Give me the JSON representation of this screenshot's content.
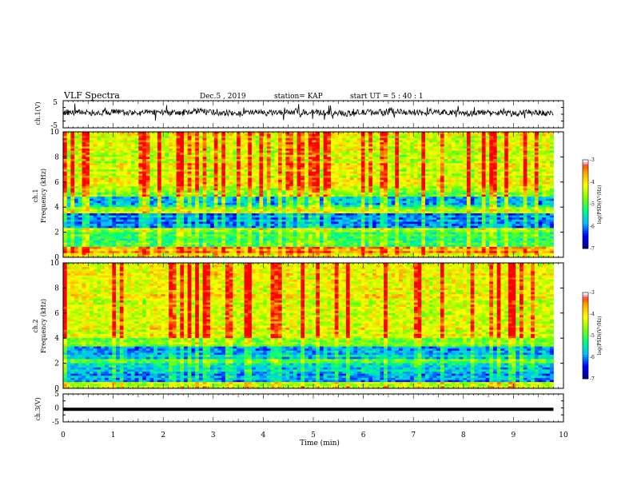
{
  "header": {
    "title": "VLF Spectra",
    "date": "Dec.5  , 2019",
    "station": "station= KAP",
    "start_ut": "start  UT =  5 : 40 : 1"
  },
  "chart_data": [
    {
      "type": "line",
      "name": "ch1-waveform",
      "ylabel": "ch.1(V)",
      "ylim": [
        -5,
        5
      ],
      "yticks": [
        "5",
        "-5"
      ],
      "xlim": [
        0,
        10
      ],
      "x_end": 9.8,
      "baseline": 0.5,
      "fluctuation": 2.2,
      "line_color": "#000000"
    },
    {
      "type": "heatmap",
      "name": "ch1-spectrogram",
      "ylabel": [
        "ch.1",
        "Frequency  (kHz)"
      ],
      "ylim": [
        0,
        10
      ],
      "yticks": [
        "0",
        "2",
        "4",
        "6",
        "8",
        "10"
      ],
      "xlim": [
        0,
        10
      ],
      "x_end": 9.8,
      "bands": [
        {
          "f": [
            0,
            0.4
          ],
          "v": -4.3
        },
        {
          "f": [
            0.4,
            0.9
          ],
          "v": -3.8
        },
        {
          "f": [
            0.9,
            2.0
          ],
          "v": -5.1
        },
        {
          "f": [
            2.0,
            2.4
          ],
          "v": -4.6
        },
        {
          "f": [
            2.4,
            3.5
          ],
          "v": -6.0
        },
        {
          "f": [
            3.5,
            4.0
          ],
          "v": -4.6
        },
        {
          "f": [
            4.0,
            4.8
          ],
          "v": -5.6
        },
        {
          "f": [
            4.8,
            5.5
          ],
          "v": -4.8
        },
        {
          "f": [
            5.5,
            10.0
          ],
          "v": -4.3
        }
      ],
      "colorbar": {
        "label": "log(PSD)(V²/Hz)",
        "ticks": [
          "-3",
          "-4",
          "-5",
          "-6",
          "-7"
        ],
        "range": [
          -7,
          -3
        ]
      }
    },
    {
      "type": "heatmap",
      "name": "ch2-spectrogram",
      "ylabel": [
        "ch.2",
        "Frequency  (kHz)"
      ],
      "ylim": [
        0,
        10
      ],
      "yticks": [
        "0",
        "2",
        "4",
        "6",
        "8",
        "10"
      ],
      "xlim": [
        0,
        10
      ],
      "x_end": 9.8,
      "bands": [
        {
          "f": [
            0,
            0.5
          ],
          "v": -4.5
        },
        {
          "f": [
            0.5,
            2.0
          ],
          "v": -5.8
        },
        {
          "f": [
            2.0,
            2.4
          ],
          "v": -4.8
        },
        {
          "f": [
            2.4,
            3.4
          ],
          "v": -5.8
        },
        {
          "f": [
            3.4,
            4.0
          ],
          "v": -4.7
        },
        {
          "f": [
            4.0,
            10.0
          ],
          "v": -4.2
        }
      ],
      "colorbar": {
        "label": "log(PSD)(V²/Hz)",
        "ticks": [
          "-3",
          "-4",
          "-5",
          "-6",
          "-7"
        ],
        "range": [
          -7,
          -3
        ]
      }
    },
    {
      "type": "line",
      "name": "ch3-waveform",
      "ylabel": "ch.3(V)",
      "ylim": [
        -5,
        5
      ],
      "yticks": [
        "5",
        "0",
        "-5"
      ],
      "xlim": [
        0,
        10
      ],
      "x_end": 9.8,
      "baseline": -0.5,
      "fluctuation": 0.05,
      "line_color": "#000000"
    }
  ],
  "xaxis": {
    "label": "Time  (min)",
    "ticks": [
      "0",
      "1",
      "2",
      "3",
      "4",
      "5",
      "6",
      "7",
      "8",
      "9",
      "10"
    ]
  },
  "colors": {
    "scale": [
      "#000080",
      "#0000ff",
      "#00bfff",
      "#00ff7f",
      "#7fff00",
      "#ffff00",
      "#ffa500",
      "#ff0000",
      "#ffffff"
    ]
  }
}
